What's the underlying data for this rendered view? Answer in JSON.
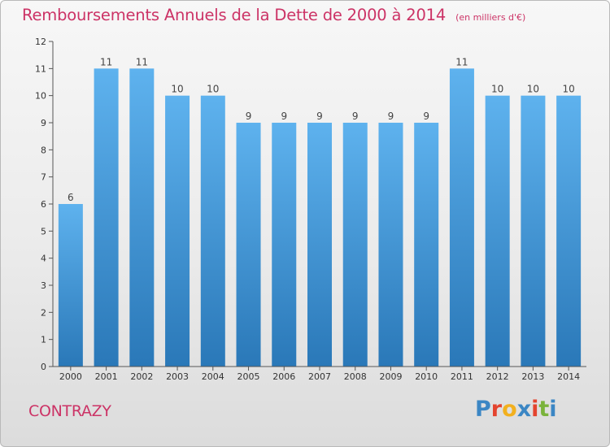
{
  "header": {
    "title": "Remboursements Annuels de la Dette de 2000 à 2014",
    "subtitle": "(en milliers d'€)"
  },
  "footer": {
    "city": "CONTRAZY",
    "logo": {
      "text": "Proxiti",
      "letter_colors": [
        "#3b86c4",
        "#e4442f",
        "#f2b01e",
        "#3b86c4",
        "#e4442f",
        "#7ab33b",
        "#3b86c4"
      ]
    }
  },
  "chart_data": {
    "type": "bar",
    "categories": [
      "2000",
      "2001",
      "2002",
      "2003",
      "2004",
      "2005",
      "2006",
      "2007",
      "2008",
      "2009",
      "2010",
      "2011",
      "2012",
      "2013",
      "2014"
    ],
    "values": [
      6,
      11,
      11,
      10,
      10,
      9,
      9,
      9,
      9,
      9,
      9,
      11,
      10,
      10,
      10
    ],
    "data_labels": [
      "6",
      "11",
      "11",
      "10",
      "10",
      "9",
      "9",
      "9",
      "9",
      "9",
      "9",
      "11",
      "10",
      "10",
      "10"
    ],
    "yticks": [
      "0",
      "1",
      "2",
      "3",
      "4",
      "5",
      "6",
      "7",
      "8",
      "9",
      "10",
      "11",
      "12"
    ],
    "ylim": [
      0,
      12
    ],
    "grid": false,
    "colors": {
      "bar_top": "#5eb2ee",
      "bar_bottom": "#2a78b8"
    }
  }
}
